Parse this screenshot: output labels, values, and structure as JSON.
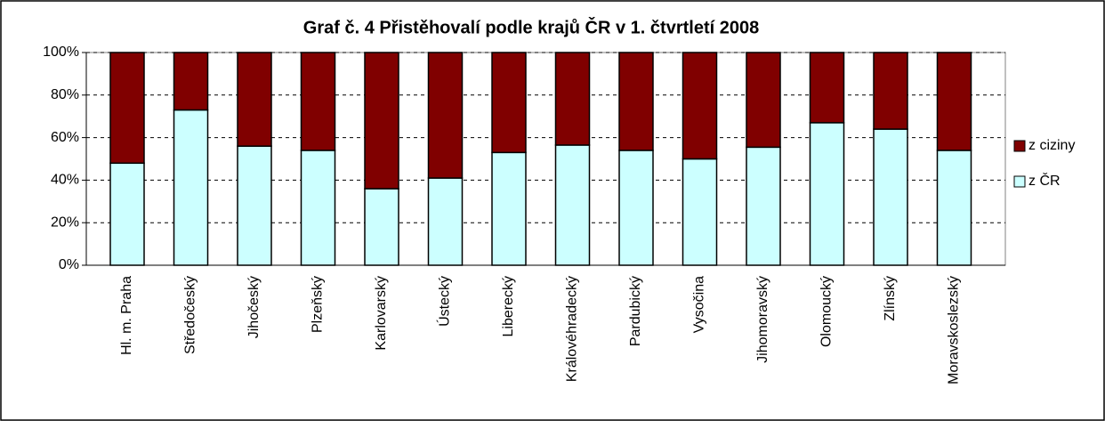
{
  "chart_data": {
    "type": "stacked_bar",
    "title": "Graf č. 4 Přistěhovalí podle krajů ČR v 1. čtvrtletí 2008",
    "categories": [
      "Hl. m. Praha",
      "Středočeský",
      "Jihočeský",
      "Plzeňský",
      "Karlovarský",
      "Ústecký",
      "Liberecký",
      "Královéhradecký",
      "Pardubický",
      "Vysočina",
      "Jihomoravský",
      "Olomoucký",
      "Zlínský",
      "Moravskoslezský"
    ],
    "series": [
      {
        "name": "z ČR",
        "color": "#ccffff",
        "values": [
          48,
          73,
          56,
          54,
          36,
          41,
          53,
          56.5,
          54,
          50,
          55.5,
          67,
          64,
          54
        ]
      },
      {
        "name": "z ciziny",
        "color": "#800000",
        "values": [
          52,
          27,
          44,
          46,
          64,
          59,
          47,
          43.5,
          46,
          50,
          44.5,
          33,
          36,
          46
        ]
      }
    ],
    "ylim": [
      0,
      100
    ],
    "yticks": [
      {
        "value": 0,
        "label": "0%"
      },
      {
        "value": 20,
        "label": "20%"
      },
      {
        "value": 40,
        "label": "40%"
      },
      {
        "value": 60,
        "label": "60%"
      },
      {
        "value": 80,
        "label": "80%"
      },
      {
        "value": 100,
        "label": "100%"
      }
    ],
    "grid": true,
    "legend": "right"
  }
}
